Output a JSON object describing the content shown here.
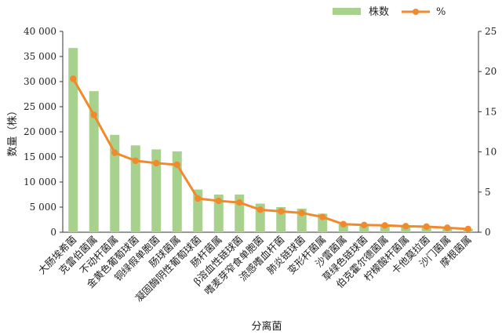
{
  "chart_data": {
    "type": "bar+line",
    "categories": [
      "大肠埃希菌",
      "克雷伯菌属",
      "不动杆菌属",
      "金黄色葡萄球菌",
      "铜绿假单胞菌",
      "肠球菌属",
      "凝固酶阴性葡萄球菌",
      "肠杆菌属",
      "β溶血性链球菌",
      "嗜麦芽窄食单胞菌",
      "流感嗜血杆菌",
      "肺炎链球菌",
      "变形杆菌属",
      "沙雷菌属",
      "草绿色链球菌",
      "伯克霍尔德菌属",
      "柠檬酸杆菌属",
      "卡他莫拉菌",
      "沙门菌属",
      "摩根菌属"
    ],
    "series": [
      {
        "name": "株数",
        "type": "bar",
        "axis": "left",
        "color": "#a9d18e",
        "values": [
          36700,
          28100,
          19400,
          17300,
          16500,
          16100,
          8500,
          7500,
          7500,
          5700,
          5000,
          4700,
          3700,
          1600,
          1400,
          1300,
          1200,
          1150,
          1000,
          650
        ]
      },
      {
        "name": "%",
        "type": "line",
        "axis": "right",
        "color": "#f08a2c",
        "values": [
          19.1,
          14.6,
          9.9,
          8.9,
          8.6,
          8.4,
          4.2,
          3.9,
          3.7,
          2.8,
          2.6,
          2.4,
          1.9,
          1.0,
          0.9,
          0.85,
          0.75,
          0.7,
          0.55,
          0.4
        ]
      }
    ],
    "xlabel": "分离菌",
    "ylabel": "数量（株）",
    "ylim_left": [
      0,
      40000
    ],
    "yticks_left": [
      "0",
      "5 000",
      "10 000",
      "15 000",
      "20 000",
      "25 000",
      "30 000",
      "35 000",
      "40 000"
    ],
    "ylim_right": [
      0,
      25
    ],
    "yticks_right": [
      "0",
      "5",
      "10",
      "15",
      "20",
      "25"
    ],
    "grid": false,
    "legend_position": "top-right"
  }
}
